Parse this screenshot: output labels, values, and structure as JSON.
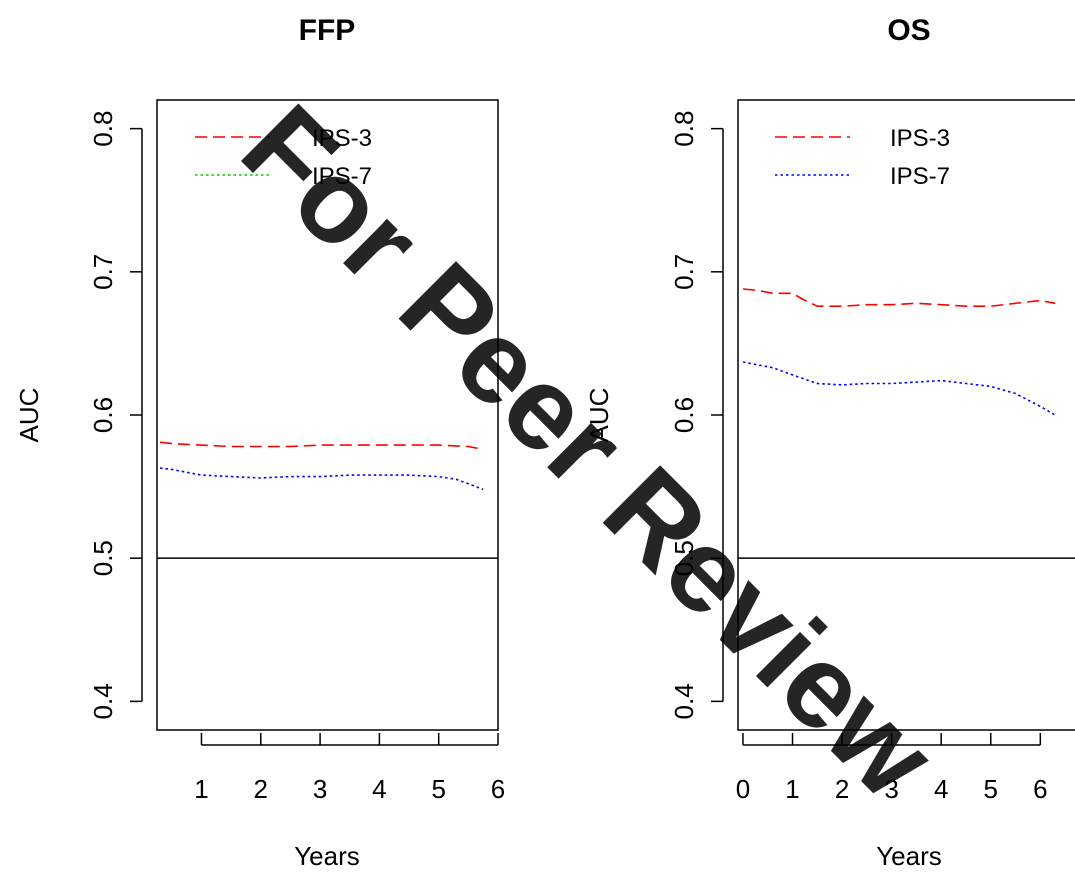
{
  "watermark": {
    "text": "For Peer Review",
    "color": "#4fc3f7"
  },
  "chart_data": [
    {
      "type": "line",
      "title": "FFP",
      "xlabel": "Years",
      "ylabel": "AUC",
      "xlim": [
        0.25,
        6.0
      ],
      "ylim": [
        0.38,
        0.82
      ],
      "xticks": [
        1,
        2,
        3,
        4,
        5,
        6
      ],
      "yticks": [
        0.4,
        0.5,
        0.6,
        0.7,
        0.8
      ],
      "reference_line": 0.5,
      "legend_position": "top-left",
      "series": [
        {
          "name": "IPS-3",
          "color": "#ff0000",
          "dash": "dashed",
          "legend_color": "#ff0000",
          "legend_dash": "dashed",
          "x": [
            0.3,
            0.5,
            1.0,
            1.5,
            2.0,
            2.5,
            3.0,
            3.5,
            4.0,
            4.5,
            5.0,
            5.5,
            5.75
          ],
          "y": [
            0.581,
            0.58,
            0.579,
            0.578,
            0.578,
            0.578,
            0.579,
            0.579,
            0.579,
            0.579,
            0.579,
            0.578,
            0.576
          ]
        },
        {
          "name": "IPS-7",
          "color": "#0000ff",
          "dash": "dotted",
          "legend_color": "#00cc00",
          "legend_dash": "dotted",
          "x": [
            0.3,
            0.5,
            0.75,
            1.0,
            1.5,
            2.0,
            2.5,
            3.0,
            3.5,
            4.0,
            4.5,
            5.0,
            5.3,
            5.5,
            5.75
          ],
          "y": [
            0.563,
            0.562,
            0.56,
            0.558,
            0.557,
            0.556,
            0.557,
            0.557,
            0.558,
            0.558,
            0.558,
            0.557,
            0.555,
            0.552,
            0.548
          ]
        }
      ]
    },
    {
      "type": "line",
      "title": "OS",
      "xlabel": "Years",
      "ylabel": "AUC",
      "xlim": [
        -0.1,
        6.7
      ],
      "ylim": [
        0.38,
        0.82
      ],
      "xticks": [
        0,
        1,
        2,
        3,
        4,
        5,
        6
      ],
      "yticks": [
        0.4,
        0.5,
        0.6,
        0.7,
        0.8
      ],
      "reference_line": 0.5,
      "legend_position": "top-left",
      "series": [
        {
          "name": "IPS-3",
          "color": "#ff0000",
          "dash": "dashed",
          "legend_color": "#ff0000",
          "legend_dash": "dashed",
          "x": [
            0.0,
            0.3,
            0.6,
            1.0,
            1.2,
            1.5,
            2.0,
            2.5,
            3.0,
            3.5,
            4.0,
            4.5,
            5.0,
            5.5,
            6.0,
            6.3
          ],
          "y": [
            0.688,
            0.687,
            0.685,
            0.685,
            0.681,
            0.676,
            0.676,
            0.677,
            0.677,
            0.678,
            0.677,
            0.676,
            0.676,
            0.678,
            0.68,
            0.678
          ]
        },
        {
          "name": "IPS-7",
          "color": "#0000ff",
          "dash": "dotted",
          "legend_color": "#0000ff",
          "legend_dash": "dotted",
          "x": [
            0.0,
            0.3,
            0.6,
            1.0,
            1.5,
            2.0,
            2.5,
            3.0,
            3.5,
            4.0,
            4.5,
            5.0,
            5.5,
            6.0,
            6.3
          ],
          "y": [
            0.637,
            0.635,
            0.633,
            0.628,
            0.622,
            0.621,
            0.622,
            0.622,
            0.623,
            0.624,
            0.622,
            0.62,
            0.615,
            0.606,
            0.6
          ]
        }
      ]
    }
  ]
}
